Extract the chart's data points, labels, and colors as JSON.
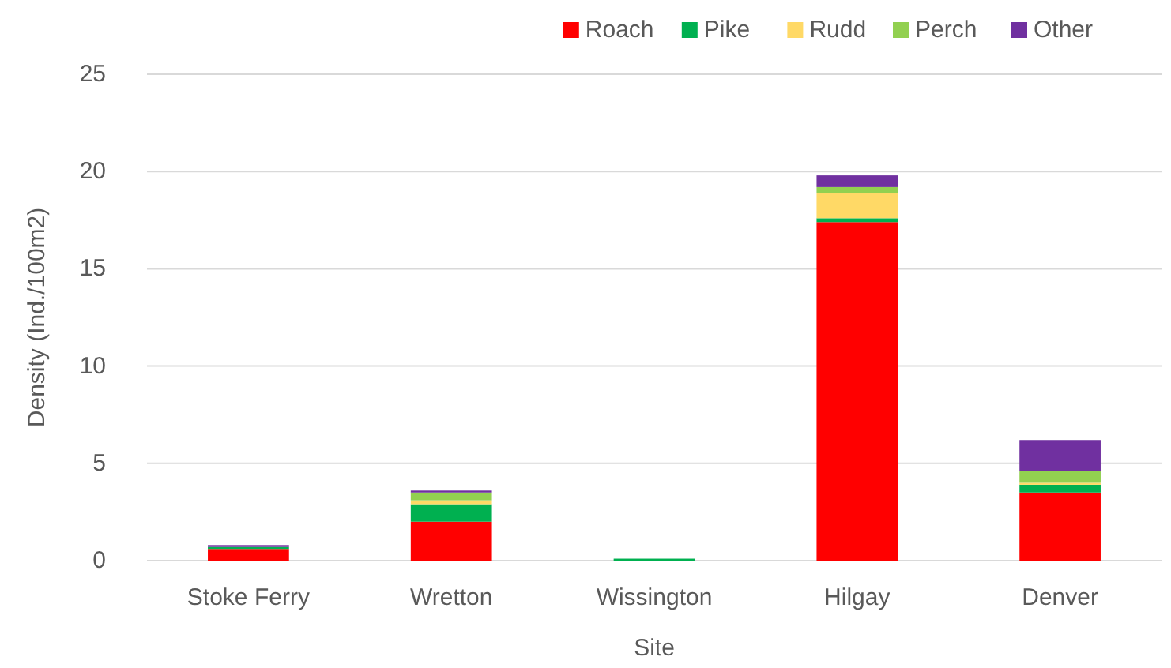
{
  "chart_data": {
    "type": "bar",
    "stacked": true,
    "xlabel": "Site",
    "ylabel": "Density (Ind./100m2)",
    "categories": [
      "Stoke Ferry",
      "Wretton",
      "Wissington",
      "Hilgay",
      "Denver"
    ],
    "series": [
      {
        "name": "Roach",
        "color": "#ff0000",
        "values": [
          0.6,
          2,
          0,
          17.4,
          3.5
        ]
      },
      {
        "name": "Pike",
        "color": "#00b050",
        "values": [
          0.1,
          0.9,
          0.1,
          0.2,
          0.4
        ]
      },
      {
        "name": "Rudd",
        "color": "#ffd966",
        "values": [
          0,
          0.2,
          0,
          1.3,
          0.1
        ]
      },
      {
        "name": "Perch",
        "color": "#92d050",
        "values": [
          0,
          0.4,
          0,
          0.3,
          0.6
        ]
      },
      {
        "name": "Other",
        "color": "#7030a0",
        "values": [
          0.1,
          0.1,
          0,
          0.6,
          1.6
        ]
      }
    ],
    "ylim": [
      0,
      25
    ],
    "yticks": [
      0,
      5,
      10,
      15,
      20,
      25
    ],
    "grid": "y",
    "legend": "top right"
  }
}
